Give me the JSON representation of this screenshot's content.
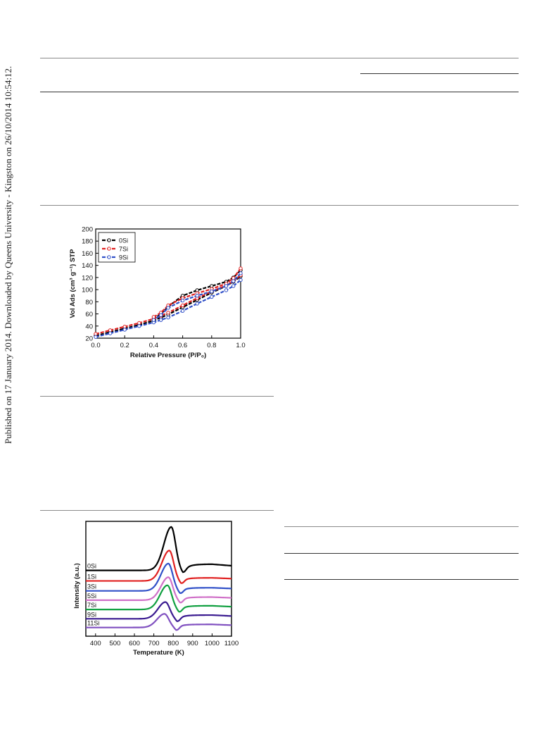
{
  "side_note": "Published on 17 January 2014. Downloaded by Queens University - Kingston on 26/10/2014 10:54:12.",
  "chart_data": [
    {
      "type": "line",
      "xlabel": "Relative Pressure (P/P₀)",
      "ylabel": "Vol Ads (cm³ g⁻¹) STP",
      "xlim": [
        0.0,
        1.0
      ],
      "ylim": [
        20,
        200
      ],
      "xticks": [
        "0.0",
        "0.2",
        "0.4",
        "0.6",
        "0.8",
        "1.0"
      ],
      "yticks": [
        "20",
        "40",
        "60",
        "80",
        "100",
        "120",
        "140",
        "160",
        "180",
        "200"
      ],
      "legend_position": "top-left",
      "series": [
        {
          "name": "0Si",
          "color": "#000000",
          "adsorption": {
            "x": [
              0.0,
              0.1,
              0.2,
              0.3,
              0.4,
              0.45,
              0.5,
              0.6,
              0.7,
              0.8,
              0.9,
              0.95,
              1.0
            ],
            "y": [
              24,
              30,
              36,
              42,
              49,
              54,
              59,
              71,
              83,
              95,
              106,
              113,
              122
            ]
          },
          "desorption": {
            "x": [
              1.0,
              0.95,
              0.9,
              0.8,
              0.7,
              0.6,
              0.5,
              0.45,
              0.4
            ],
            "y": [
              132,
              120,
              113,
              106,
              99,
              90,
              72,
              60,
              52
            ]
          }
        },
        {
          "name": "7Si",
          "color": "#e02020",
          "adsorption": {
            "x": [
              0.0,
              0.1,
              0.2,
              0.3,
              0.4,
              0.45,
              0.5,
              0.6,
              0.7,
              0.8,
              0.9,
              0.95,
              1.0
            ],
            "y": [
              27,
              33,
              39,
              45,
              52,
              57,
              62,
              74,
              86,
              97,
              107,
              114,
              124
            ]
          },
          "desorption": {
            "x": [
              1.0,
              0.95,
              0.9,
              0.8,
              0.7,
              0.6,
              0.5,
              0.45,
              0.4
            ],
            "y": [
              135,
              119,
              110,
              101,
              94,
              86,
              74,
              62,
              55
            ]
          }
        },
        {
          "name": "9Si",
          "color": "#3050c8",
          "adsorption": {
            "x": [
              0.0,
              0.1,
              0.2,
              0.3,
              0.4,
              0.45,
              0.5,
              0.6,
              0.7,
              0.8,
              0.9,
              0.95,
              1.0
            ],
            "y": [
              22,
              28,
              34,
              40,
              46,
              50,
              54,
              65,
              77,
              88,
              99,
              106,
              116
            ]
          },
          "desorption": {
            "x": [
              1.0,
              0.95,
              0.9,
              0.8,
              0.7,
              0.6,
              0.5,
              0.45,
              0.4
            ],
            "y": [
              127,
              114,
              106,
              97,
              90,
              82,
              70,
              58,
              50
            ]
          }
        }
      ]
    },
    {
      "type": "line",
      "xlabel": "Temperature (K)",
      "ylabel": "Intensity (a.u.)",
      "xlim": [
        350,
        1100
      ],
      "xticks": [
        "400",
        "500",
        "600",
        "700",
        "800",
        "900",
        "1000",
        "1100"
      ],
      "y_units": "arbitrary, stacked traces",
      "series": [
        {
          "name": "0Si",
          "color": "#000000",
          "baseline": 10.6,
          "peak_x": 790,
          "peak_height": 7.0,
          "plateau": 1.0
        },
        {
          "name": "1Si",
          "color": "#e02020",
          "baseline": 8.9,
          "peak_x": 780,
          "peak_height": 4.9,
          "plateau": 0.5
        },
        {
          "name": "3Si",
          "color": "#3050c8",
          "baseline": 7.3,
          "peak_x": 775,
          "peak_height": 4.4,
          "plateau": 0.5
        },
        {
          "name": "5Si",
          "color": "#d070c8",
          "baseline": 5.8,
          "peak_x": 775,
          "peak_height": 3.7,
          "plateau": 0.5
        },
        {
          "name": "7Si",
          "color": "#10a040",
          "baseline": 4.3,
          "peak_x": 770,
          "peak_height": 3.9,
          "plateau": 0.6
        },
        {
          "name": "9Si",
          "color": "#3a1a90",
          "baseline": 2.8,
          "peak_x": 760,
          "peak_height": 2.7,
          "plateau": 0.6
        },
        {
          "name": "11Si",
          "color": "#8050c0",
          "baseline": 1.4,
          "peak_x": 755,
          "peak_height": 2.2,
          "plateau": 0.5
        }
      ]
    }
  ]
}
